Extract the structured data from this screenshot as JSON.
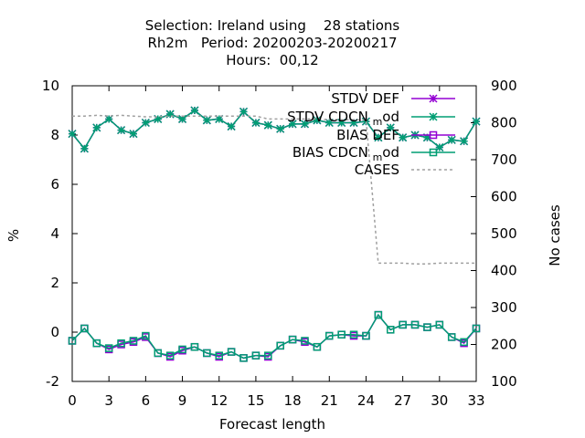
{
  "chart_data": {
    "type": "line",
    "title_lines": [
      "Selection: Ireland using    28 stations",
      "Rh2m   Period: 20200203-20200217",
      "Hours:  00,12"
    ],
    "xlabel": "Forecast length",
    "ylabel": "%",
    "y2label": "No cases",
    "xlim": [
      0,
      33
    ],
    "ylim": [
      -2,
      10
    ],
    "y2lim": [
      100,
      900
    ],
    "x_ticks": [
      "0",
      "3",
      "6",
      "9",
      "12",
      "15",
      "18",
      "21",
      "24",
      "27",
      "30",
      "33"
    ],
    "y_ticks": [
      "-2",
      "0",
      "2",
      "4",
      "6",
      "8",
      "10"
    ],
    "y2_ticks": [
      "100",
      "200",
      "300",
      "400",
      "500",
      "600",
      "700",
      "800",
      "900"
    ],
    "x": [
      0,
      1,
      2,
      3,
      4,
      5,
      6,
      7,
      8,
      9,
      10,
      11,
      12,
      13,
      14,
      15,
      16,
      17,
      18,
      19,
      20,
      21,
      22,
      23,
      24,
      25,
      26,
      27,
      28,
      29,
      30,
      31,
      32,
      33
    ],
    "legend_position": "top-right",
    "series": [
      {
        "name": "STDV DEF",
        "color": "#9400d3",
        "marker": "star",
        "axis": "left",
        "values": [
          8.05,
          7.45,
          8.3,
          8.65,
          8.2,
          8.05,
          8.5,
          8.65,
          8.85,
          8.65,
          9.0,
          8.6,
          8.65,
          8.35,
          8.95,
          8.5,
          8.4,
          8.25,
          8.45,
          8.45,
          8.6,
          8.5,
          8.5,
          8.5,
          8.55,
          7.9,
          8.3,
          7.9,
          8.0,
          7.9,
          7.5,
          7.8,
          7.75,
          8.55
        ]
      },
      {
        "name": "STDV CDCN_mod",
        "color": "#009e73",
        "marker": "star",
        "axis": "left",
        "values": [
          8.05,
          7.45,
          8.3,
          8.65,
          8.2,
          8.05,
          8.5,
          8.65,
          8.85,
          8.65,
          9.0,
          8.6,
          8.65,
          8.35,
          8.95,
          8.5,
          8.4,
          8.25,
          8.45,
          8.45,
          8.6,
          8.5,
          8.5,
          8.5,
          8.55,
          7.9,
          8.3,
          7.9,
          8.0,
          7.9,
          7.5,
          7.8,
          7.75,
          8.55
        ]
      },
      {
        "name": "BIAS DEF",
        "color": "#9400d3",
        "marker": "square",
        "axis": "left",
        "values": [
          -0.35,
          0.15,
          -0.45,
          -0.7,
          -0.5,
          -0.4,
          -0.2,
          -0.85,
          -1.0,
          -0.75,
          -0.6,
          -0.85,
          -1.0,
          -0.8,
          -1.05,
          -0.95,
          -1.0,
          -0.55,
          -0.3,
          -0.4,
          -0.6,
          -0.15,
          -0.1,
          -0.15,
          -0.15,
          0.7,
          0.1,
          0.3,
          0.3,
          0.2,
          0.3,
          -0.2,
          -0.45,
          0.15
        ]
      },
      {
        "name": "BIAS CDCN_mod",
        "color": "#009e73",
        "marker": "square",
        "axis": "left",
        "values": [
          -0.35,
          0.15,
          -0.45,
          -0.65,
          -0.45,
          -0.35,
          -0.15,
          -0.85,
          -0.95,
          -0.7,
          -0.6,
          -0.85,
          -0.95,
          -0.8,
          -1.05,
          -0.95,
          -0.95,
          -0.55,
          -0.3,
          -0.35,
          -0.6,
          -0.15,
          -0.1,
          -0.1,
          -0.15,
          0.7,
          0.1,
          0.3,
          0.3,
          0.2,
          0.3,
          -0.2,
          -0.4,
          0.15
        ]
      },
      {
        "name": "CASES",
        "color": "#a0a0a0",
        "dashed": true,
        "axis": "right",
        "values": [
          818,
          818,
          820,
          818,
          820,
          818,
          816,
          816,
          818,
          818,
          818,
          818,
          818,
          818,
          818,
          818,
          810,
          810,
          810,
          810,
          810,
          808,
          808,
          808,
          808,
          420,
          420,
          420,
          418,
          418,
          420,
          420,
          420,
          420
        ]
      }
    ]
  }
}
